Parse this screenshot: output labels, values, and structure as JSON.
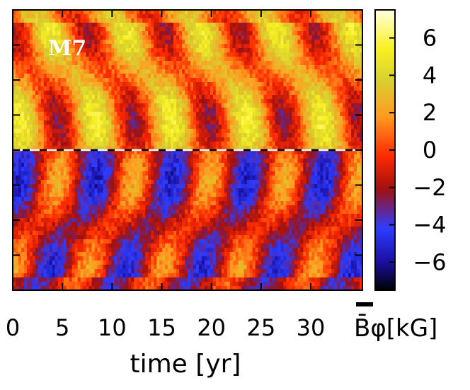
{
  "chart_data": {
    "type": "heatmap",
    "title": "",
    "model_label": "M7",
    "xlabel": "time [yr]",
    "ylabel": "",
    "x_ticks": [
      0,
      5,
      10,
      15,
      20,
      25,
      30
    ],
    "x_tick_labels": [
      "0",
      "5",
      "10",
      "15",
      "20",
      "25",
      "30"
    ],
    "xlim": [
      0,
      35.2
    ],
    "ylim": [
      -1,
      1
    ],
    "y_tick_labels_shown": false,
    "equator_line": {
      "y": 0,
      "style": "dashed",
      "colors": [
        "#000000",
        "#ffffff"
      ]
    },
    "colorbar": {
      "title": "B̄φ[kG]",
      "range": [
        -7.5,
        7.5
      ],
      "ticks": [
        6,
        4,
        2,
        0,
        -2,
        -4,
        -6
      ],
      "tick_labels": [
        "6",
        "4",
        "2",
        "0",
        "−2",
        "−4",
        "−6"
      ],
      "colormap": [
        "#000000",
        "#1a0fa0",
        "#2d3cff",
        "#a01010",
        "#ff2a00",
        "#ff9a20",
        "#d8d030",
        "#f8f020",
        "#ffffe0"
      ]
    },
    "description_of_pattern": "Torus-like migrating toroidal field bands in both hemispheres; antisymmetric about the equator; roughly 7-8 yr cycle."
  }
}
